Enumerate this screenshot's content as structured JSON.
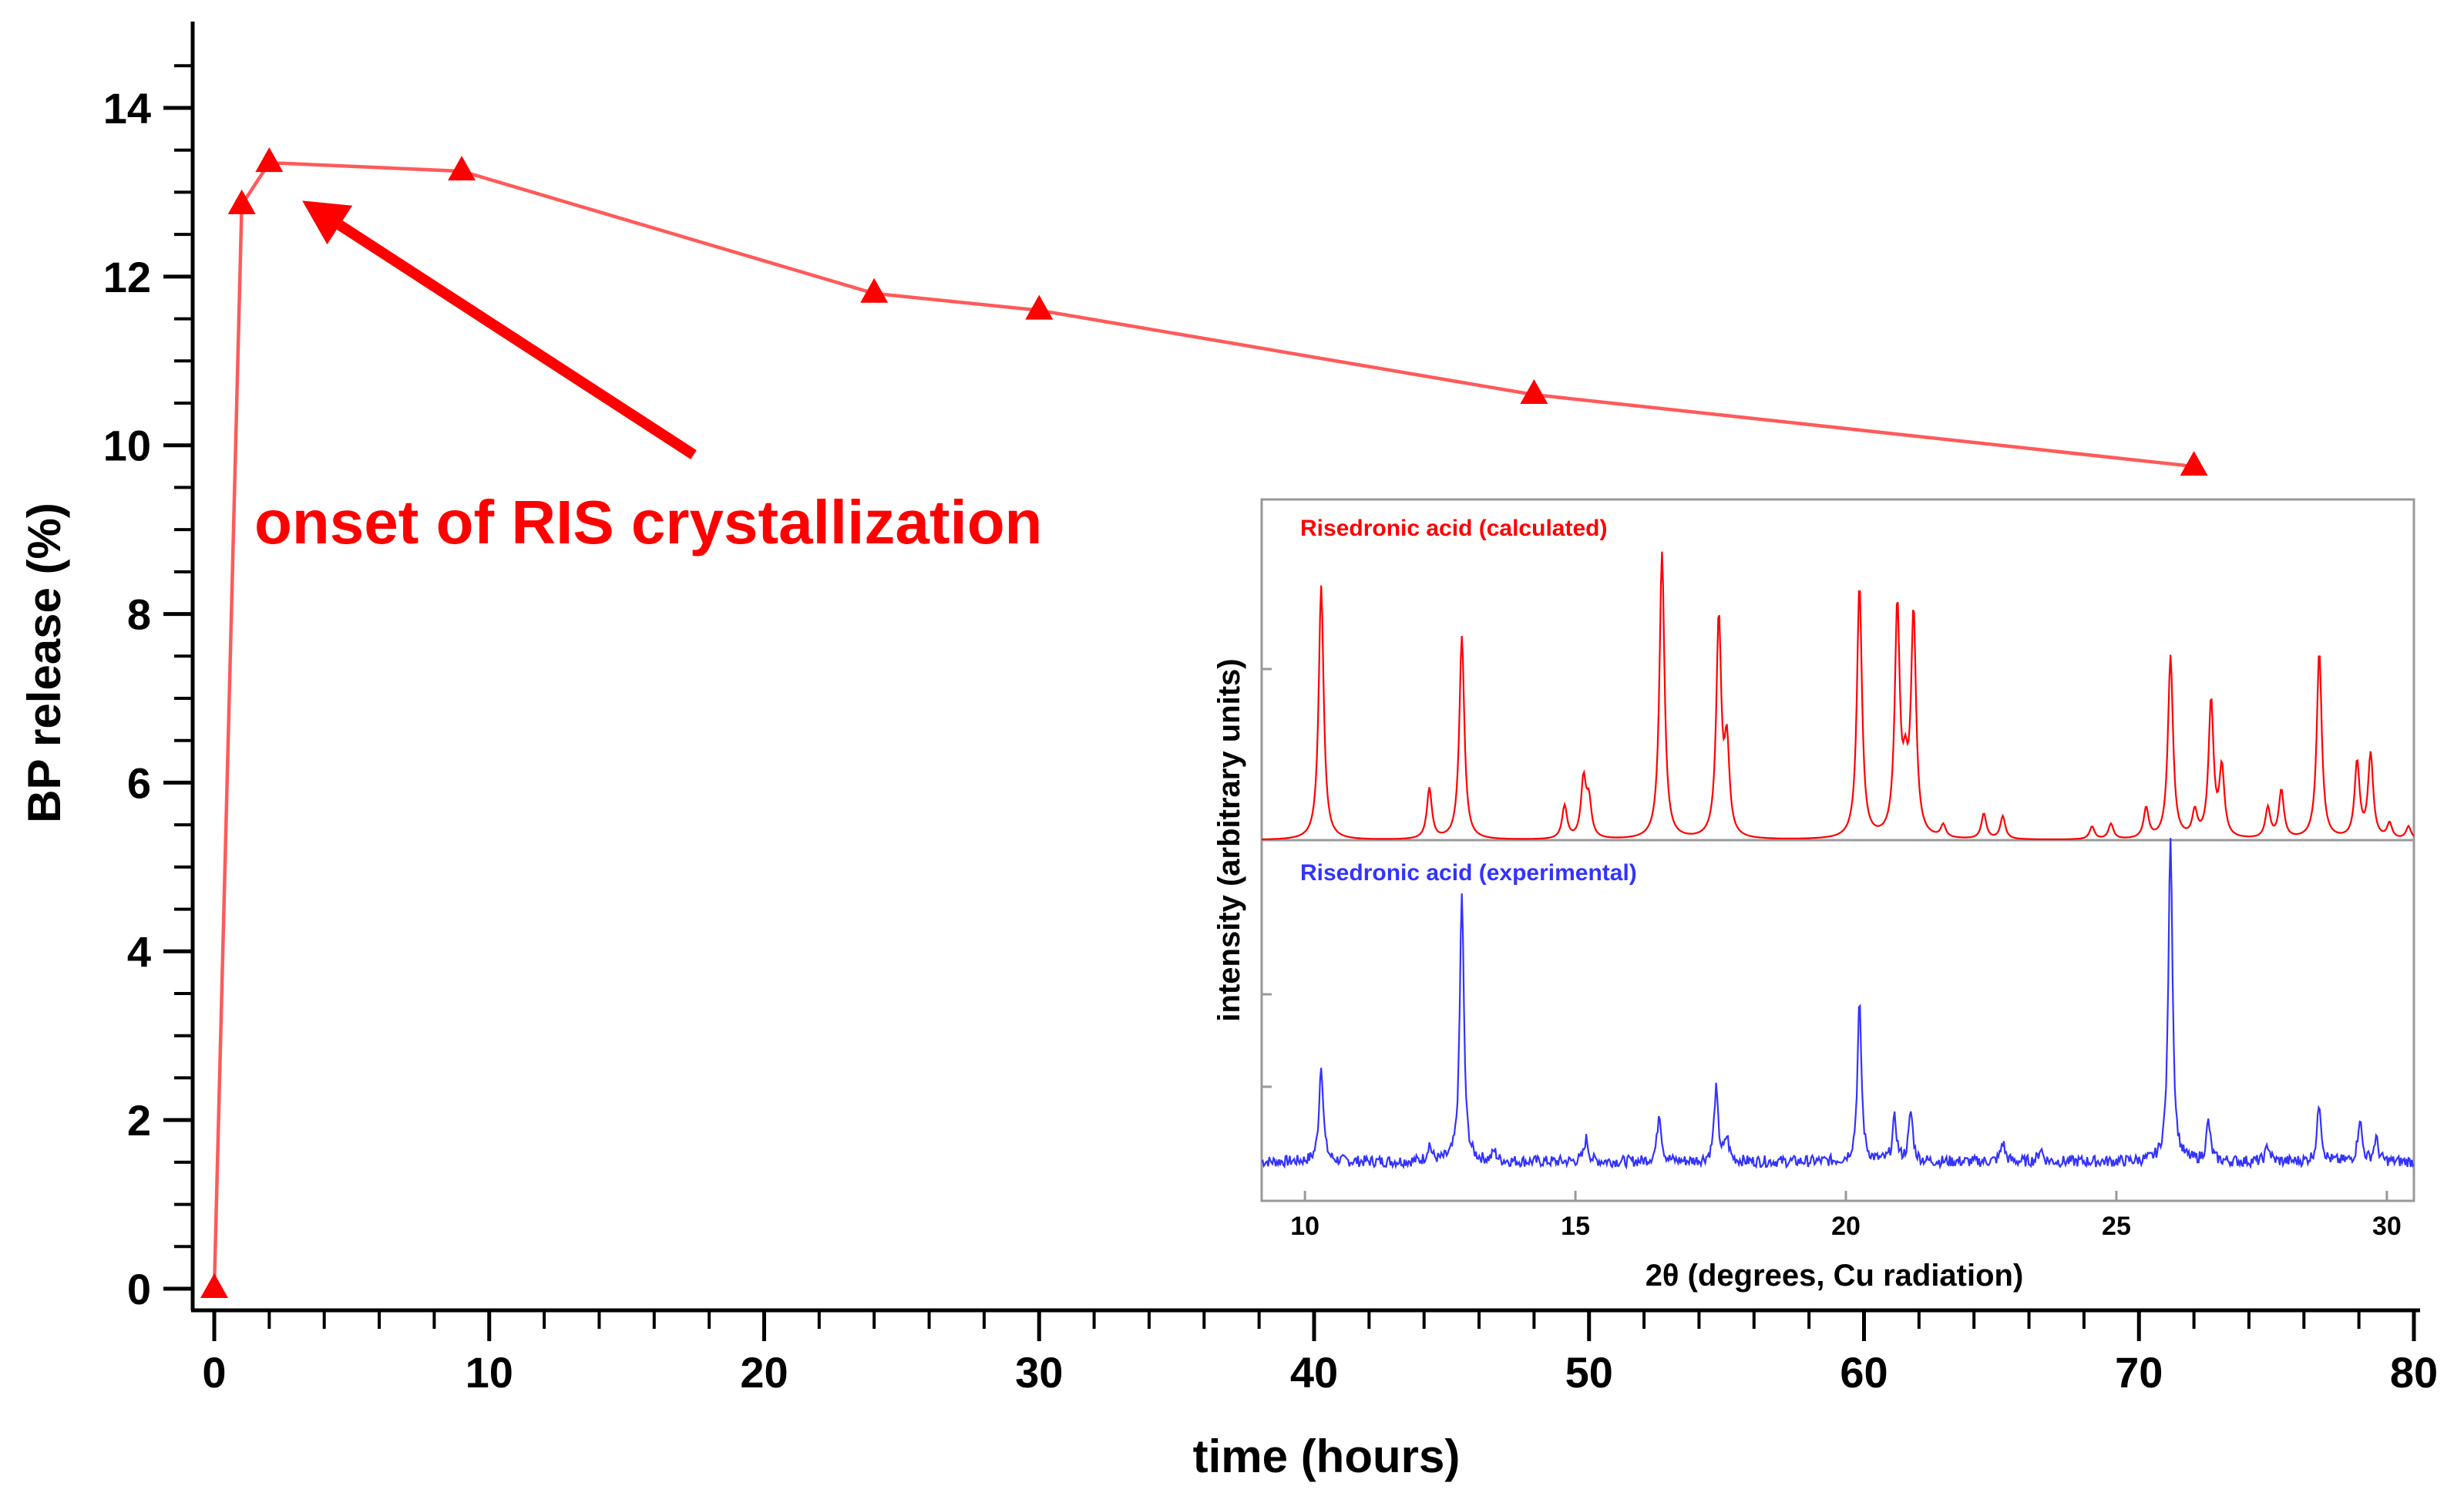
{
  "chart_data": [
    {
      "type": "line",
      "title": "",
      "xlabel": "time (hours)",
      "ylabel": "BP release (%)",
      "xlim": [
        0,
        80
      ],
      "ylim": [
        0,
        14.5
      ],
      "xticks": [
        0,
        10,
        20,
        30,
        40,
        50,
        60,
        70,
        80
      ],
      "xtick_labels": [
        "0",
        "10",
        "20",
        "30",
        "40",
        "50",
        "60",
        "70",
        "80"
      ],
      "yticks": [
        0,
        2,
        4,
        6,
        8,
        10,
        12,
        14
      ],
      "ytick_labels": [
        "0",
        "2",
        "4",
        "6",
        "8",
        "10",
        "12",
        "14"
      ],
      "series": [
        {
          "name": "BP release",
          "color": "#ff0000",
          "marker": "triangle",
          "x": [
            0,
            1,
            2,
            9,
            24,
            30,
            48,
            72
          ],
          "y": [
            0,
            12.85,
            13.35,
            13.25,
            11.8,
            11.6,
            10.6,
            9.75
          ]
        }
      ],
      "annotation": {
        "text": "onset of RIS crystallization",
        "color": "#ff0000",
        "arrow_target": {
          "x": 3.2,
          "y": 12.9
        }
      }
    },
    {
      "type": "line",
      "title": "",
      "xlabel": "2θ (degrees, Cu radiation)",
      "ylabel": "intensity (arbitrary units)",
      "xlim": [
        9.2,
        30.5
      ],
      "xticks": [
        10,
        15,
        20,
        25,
        30
      ],
      "xtick_labels": [
        "10",
        "15",
        "20",
        "25",
        "30"
      ],
      "series": [
        {
          "name": "Risedronic acid (calculated)",
          "color": "#ff0000",
          "baseline": 0,
          "peaks": [
            [
              10.3,
              1.0
            ],
            [
              12.3,
              0.2
            ],
            [
              12.9,
              0.8
            ],
            [
              14.8,
              0.13
            ],
            [
              15.15,
              0.23
            ],
            [
              15.25,
              0.14
            ],
            [
              16.6,
              1.13
            ],
            [
              17.65,
              0.86
            ],
            [
              17.8,
              0.35
            ],
            [
              20.25,
              1.0
            ],
            [
              20.95,
              0.9
            ],
            [
              21.25,
              0.87
            ],
            [
              21.1,
              0.2
            ],
            [
              21.8,
              0.05
            ],
            [
              22.55,
              0.1
            ],
            [
              22.9,
              0.09
            ],
            [
              24.55,
              0.05
            ],
            [
              24.9,
              0.06
            ],
            [
              25.55,
              0.12
            ],
            [
              26.0,
              0.72
            ],
            [
              26.45,
              0.1
            ],
            [
              26.75,
              0.54
            ],
            [
              26.95,
              0.27
            ],
            [
              27.8,
              0.12
            ],
            [
              28.05,
              0.19
            ],
            [
              28.75,
              0.74
            ],
            [
              29.45,
              0.3
            ],
            [
              29.7,
              0.33
            ],
            [
              30.05,
              0.06
            ],
            [
              30.4,
              0.05
            ]
          ]
        },
        {
          "name": "Risedronic acid (experimental)",
          "color": "#3333ff",
          "baseline": 0.03,
          "peaks": [
            [
              10.3,
              0.3
            ],
            [
              12.3,
              0.05
            ],
            [
              12.9,
              0.82
            ],
            [
              13.5,
              0.03
            ],
            [
              15.2,
              0.07
            ],
            [
              16.55,
              0.15
            ],
            [
              17.6,
              0.22
            ],
            [
              17.8,
              0.07
            ],
            [
              20.25,
              0.48
            ],
            [
              20.9,
              0.13
            ],
            [
              21.2,
              0.15
            ],
            [
              22.9,
              0.06
            ],
            [
              23.6,
              0.04
            ],
            [
              26.0,
              1.0
            ],
            [
              26.7,
              0.12
            ],
            [
              27.8,
              0.05
            ],
            [
              28.75,
              0.18
            ],
            [
              29.5,
              0.13
            ],
            [
              29.8,
              0.07
            ]
          ]
        }
      ]
    }
  ]
}
